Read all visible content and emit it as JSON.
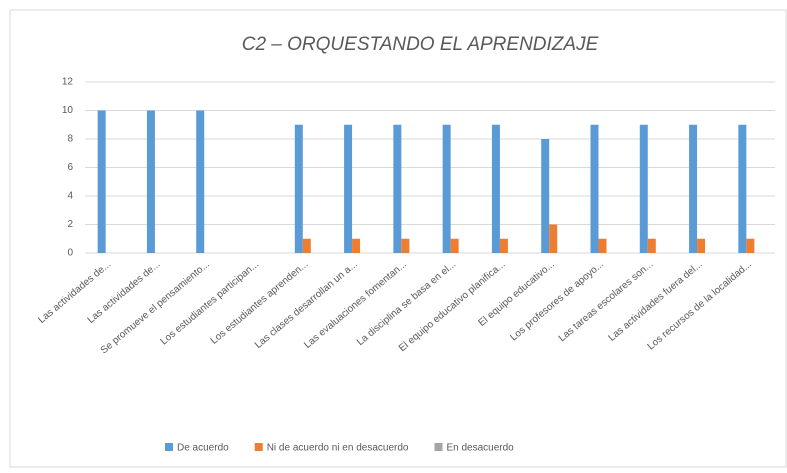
{
  "chart_data": {
    "type": "bar",
    "title": "C2 – ORQUESTANDO EL APRENDIZAJE",
    "categories": [
      "Las actividades de...",
      "Las actividades de...",
      "Se promueve el pensamiento...",
      "Los estudiantes participan...",
      "Los estudiantes aprenden...",
      "Las clases desarrollan un a...",
      "Las evaluaciones fomentan...",
      "La disciplina se basa en el...",
      "El equipo educativo planifica...",
      "El equipo educativo...",
      "Los profesores de apoyo...",
      "Las tareas escolares son...",
      "Las actividades fuera del...",
      "Los recursos de la localidad..."
    ],
    "series": [
      {
        "name": "De acuerdo",
        "color": "#5b9bd5",
        "values": [
          10,
          10,
          10,
          null,
          9,
          9,
          9,
          9,
          9,
          8,
          9,
          9,
          9,
          9
        ]
      },
      {
        "name": "Ni de acuerdo ni en desacuerdo",
        "color": "#ed7d31",
        "values": [
          0,
          0,
          0,
          null,
          1,
          1,
          1,
          1,
          1,
          2,
          1,
          1,
          1,
          1
        ]
      },
      {
        "name": "En desacuerdo",
        "color": "#a5a5a5",
        "values": [
          0,
          0,
          0,
          null,
          0,
          0,
          0,
          0,
          0,
          0,
          0,
          0,
          0,
          0
        ]
      }
    ],
    "ylim": [
      0,
      12
    ],
    "yticks": [
      0,
      2,
      4,
      6,
      8,
      10,
      12
    ],
    "grid": true,
    "legend": "bottom"
  }
}
